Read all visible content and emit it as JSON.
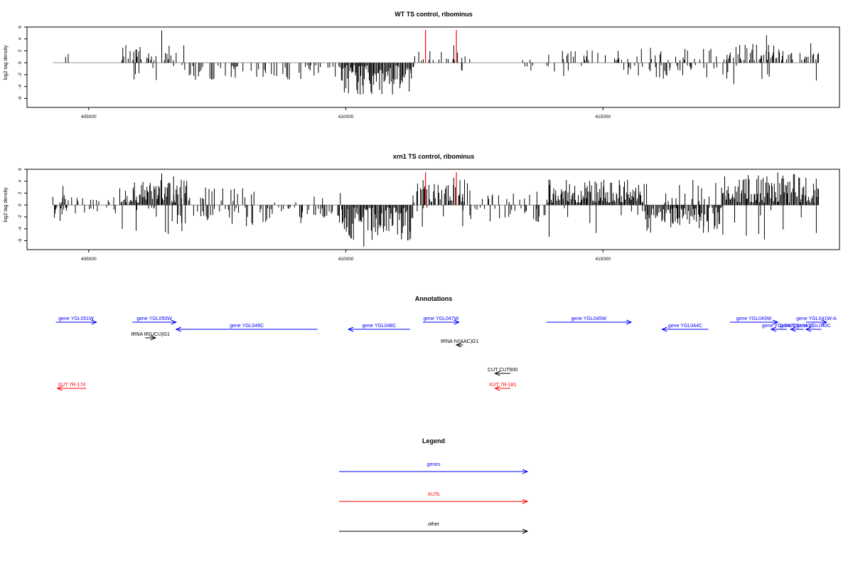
{
  "chart_data": [
    {
      "type": "bar",
      "title": "WT TS control, ribominus",
      "ylabel": "log2 tag density",
      "xlim": [
        403800,
        419600
      ],
      "ylim": [
        -7.5,
        6.0
      ],
      "xticks": [
        405000,
        410000,
        415000
      ],
      "yticks": [
        6,
        4,
        2,
        0,
        -2,
        -4,
        -6
      ],
      "grid": false,
      "bar_color": "#000000",
      "highlight_color": "#ff0000",
      "highlights": [
        {
          "x": 411550,
          "y": 5.5
        },
        {
          "x": 412150,
          "y": 5.5
        }
      ],
      "seed": 7,
      "density": [
        [
          404300,
          404550,
          0.0,
          0.0,
          0.0
        ],
        [
          404550,
          405600,
          0.0,
          0.0,
          0.0
        ],
        [
          405600,
          406800,
          0.45,
          0.08,
          0.55
        ],
        [
          406800,
          408300,
          0.0,
          0.3,
          0.5
        ],
        [
          408300,
          409900,
          0.0,
          0.3,
          0.45
        ],
        [
          409900,
          411300,
          0.0,
          1.0,
          0.9
        ],
        [
          411300,
          412400,
          0.25,
          0.05,
          0.35
        ],
        [
          412400,
          413900,
          0.05,
          0.05,
          0.2
        ],
        [
          413900,
          415400,
          0.3,
          0.05,
          0.4
        ],
        [
          415400,
          417400,
          0.2,
          0.3,
          0.45
        ],
        [
          417400,
          419200,
          0.55,
          0.08,
          0.6
        ]
      ],
      "spikes": [
        [
          404550,
          1.0
        ],
        [
          404600,
          1.5
        ],
        [
          406420,
          5.4
        ],
        [
          406850,
          2.9
        ],
        [
          410230,
          -5.2
        ],
        [
          412100,
          2.9
        ],
        [
          418180,
          4.6
        ],
        [
          419150,
          -3.0
        ],
        [
          412250,
          -1.2
        ],
        [
          413600,
          -1.3
        ]
      ]
    },
    {
      "type": "bar",
      "title": "xrn1 TS control, ribominus",
      "ylabel": "log2 tag density",
      "xlim": [
        403800,
        419600
      ],
      "ylim": [
        -7.5,
        6.0
      ],
      "xticks": [
        405000,
        410000,
        415000
      ],
      "yticks": [
        6,
        4,
        2,
        0,
        -2,
        -4,
        -6
      ],
      "grid": false,
      "bar_color": "#000000",
      "highlight_color": "#ff0000",
      "highlights": [
        {
          "x": 411550,
          "y": 5.5
        },
        {
          "x": 412150,
          "y": 5.5
        }
      ],
      "seed": 23,
      "density": [
        [
          404300,
          404600,
          0.4,
          0.4,
          0.5
        ],
        [
          404600,
          405600,
          0.1,
          0.1,
          0.2
        ],
        [
          405600,
          406900,
          0.85,
          0.15,
          0.8
        ],
        [
          406900,
          408300,
          0.25,
          0.35,
          0.6
        ],
        [
          408300,
          409900,
          0.1,
          0.4,
          0.5
        ],
        [
          409900,
          411300,
          0.0,
          1.0,
          1.0
        ],
        [
          411300,
          412400,
          0.7,
          0.1,
          0.8
        ],
        [
          412400,
          413900,
          0.2,
          0.25,
          0.45
        ],
        [
          413900,
          415800,
          1.0,
          0.05,
          0.9
        ],
        [
          415800,
          417300,
          0.1,
          0.85,
          0.8
        ],
        [
          417300,
          419200,
          1.0,
          0.1,
          1.0
        ]
      ],
      "spikes": [
        [
          404500,
          3.2
        ],
        [
          404480,
          -1.6
        ],
        [
          406420,
          5.3
        ],
        [
          406650,
          4.8
        ],
        [
          410350,
          -7.0
        ],
        [
          412100,
          4.6
        ],
        [
          418400,
          5.5
        ],
        [
          419150,
          -4.7
        ]
      ]
    }
  ],
  "annotations": {
    "title": "Annotations",
    "features": [
      {
        "label": "gene YGL051W",
        "class": "gene",
        "x1": 404360,
        "x2": 405150,
        "strand": "+",
        "row": 0
      },
      {
        "label": "gene YGL050W",
        "class": "gene",
        "x1": 405850,
        "x2": 406700,
        "strand": "+",
        "row": 0
      },
      {
        "label": "tRNA tR(UCU)G1",
        "class": "other",
        "x1": 406100,
        "x2": 406300,
        "strand": "+",
        "row": 2
      },
      {
        "label": "gene YGL049C",
        "class": "gene",
        "x1": 406700,
        "x2": 409450,
        "strand": "-",
        "row": 1
      },
      {
        "label": "gene YGL048C",
        "class": "gene",
        "x1": 410050,
        "x2": 411250,
        "strand": "-",
        "row": 1
      },
      {
        "label": "gene YGL047W",
        "class": "gene",
        "x1": 411500,
        "x2": 412200,
        "strand": "+",
        "row": 0
      },
      {
        "label": "tRNA tV(AAC)G1",
        "class": "other",
        "x1": 412150,
        "x2": 412280,
        "strand": "-",
        "row": 3
      },
      {
        "label": "gene YGL045W",
        "class": "gene",
        "x1": 413900,
        "x2": 415550,
        "strand": "+",
        "row": 0
      },
      {
        "label": "gene YGL044C",
        "class": "gene",
        "x1": 416150,
        "x2": 417050,
        "strand": "-",
        "row": 1
      },
      {
        "label": "gene YGL043W",
        "class": "gene",
        "x1": 417470,
        "x2": 418400,
        "strand": "+",
        "row": 0
      },
      {
        "label": "gene YGL041W-A",
        "class": "gene",
        "x1": 418950,
        "x2": 419350,
        "strand": "+",
        "row": 0
      },
      {
        "label": "gene YGL042C",
        "class": "gene",
        "x1": 418270,
        "x2": 418580,
        "strand": "-",
        "row": 1
      },
      {
        "label": "gene YGL041C",
        "class": "gene",
        "x1": 418650,
        "x2": 418900,
        "strand": "-",
        "row": 1
      },
      {
        "label": "gene YGL040C",
        "class": "gene",
        "x1": 418950,
        "x2": 419250,
        "strand": "-",
        "row": 1
      },
      {
        "label": "CUT CUT600",
        "class": "other",
        "x1": 412900,
        "x2": 413200,
        "strand": "-",
        "row": 4
      },
      {
        "label": "XUT 7R-174",
        "class": "xut",
        "x1": 404390,
        "x2": 404950,
        "strand": "-",
        "row": 5
      },
      {
        "label": "XUT 7R-181",
        "class": "xut",
        "x1": 412900,
        "x2": 413200,
        "strand": "-",
        "row": 5
      }
    ]
  },
  "legend": {
    "title": "Legend",
    "entries": [
      {
        "label": "genes",
        "class": "gene"
      },
      {
        "label": "XUTs",
        "class": "xut"
      },
      {
        "label": "other",
        "class": "other"
      }
    ]
  },
  "colors": {
    "gene": "#0000ff",
    "xut": "#ff0000",
    "other": "#000000"
  }
}
